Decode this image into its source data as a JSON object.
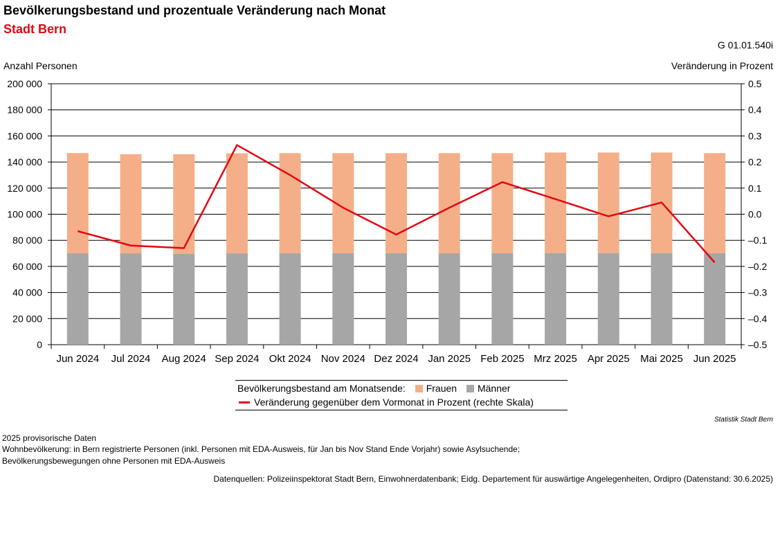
{
  "header": {
    "title": "Bevölkerungsbestand und prozentuale Veränderung nach Monat",
    "subtitle": "Stadt Bern",
    "code": "G 01.01.540i"
  },
  "chart_data": {
    "type": "bar",
    "stacked": true,
    "secondary_type": "line",
    "categories": [
      "Jun 2024",
      "Jul 2024",
      "Aug 2024",
      "Sep 2024",
      "Okt 2024",
      "Nov 2024",
      "Dez 2024",
      "Jan 2025",
      "Feb 2025",
      "Mrz 2025",
      "Apr 2025",
      "Mai 2025",
      "Jun 2025"
    ],
    "series": [
      {
        "name": "Männer",
        "axis": "left",
        "color": "#a6a6a6",
        "values": [
          70100,
          70000,
          69700,
          70000,
          70100,
          70100,
          70100,
          70100,
          70100,
          70200,
          70200,
          70200,
          70100
        ]
      },
      {
        "name": "Frauen",
        "axis": "left",
        "color": "#f4af88",
        "values": [
          76800,
          76000,
          76300,
          76700,
          76700,
          76700,
          76700,
          76700,
          76700,
          77100,
          77100,
          77100,
          76700
        ]
      },
      {
        "name": "Veränderung gegenüber dem Vormonat in Prozent (rechte Skala)",
        "axis": "right",
        "type": "line",
        "color": "#e30613",
        "values": [
          -0.065,
          -0.12,
          -0.13,
          0.265,
          0.15,
          0.025,
          -0.078,
          0.025,
          0.123,
          0.058,
          -0.008,
          0.045,
          -0.185
        ]
      }
    ],
    "ylabel": "Anzahl Personen",
    "ylabel_right": "Veränderung in Prozent",
    "ylim": [
      0,
      200000
    ],
    "ylim_right": [
      -0.5,
      0.5
    ],
    "yticks": [
      "0",
      "20 000",
      "40 000",
      "60 000",
      "80 000",
      "100 000",
      "120 000",
      "140 000",
      "160 000",
      "180 000",
      "200 000"
    ],
    "yticks_right": [
      "–0.5",
      "–0.4",
      "–0.3",
      "–0.2",
      "–0.1",
      "0.0",
      "0.1",
      "0.2",
      "0.3",
      "0.4",
      "0.5"
    ],
    "grid": true
  },
  "legend": {
    "prefix": "Bevölkerungsbestand am Monatsende:",
    "frauen": "Frauen",
    "maenner": "Männer",
    "line": "Veränderung gegenüber dem Vormonat in Prozent (rechte Skala)"
  },
  "credit": "Statistik Stadt Bern",
  "notes": [
    "2025 provisorische Daten",
    "Wohnbevölkerung: in Bern registrierte Personen (inkl. Personen mit EDA-Ausweis, für Jan bis Nov Stand Ende Vorjahr) sowie Asylsuchende;",
    "Bevölkerungsbewegungen ohne Personen mit EDA-Ausweis"
  ],
  "sources": "Datenquellen: Polizeiinspektorat Stadt Bern, Einwohnerdatenbank; Eidg. Departement für auswärtige Angelegenheiten, Ordipro (Datenstand: 30.6.2025)"
}
